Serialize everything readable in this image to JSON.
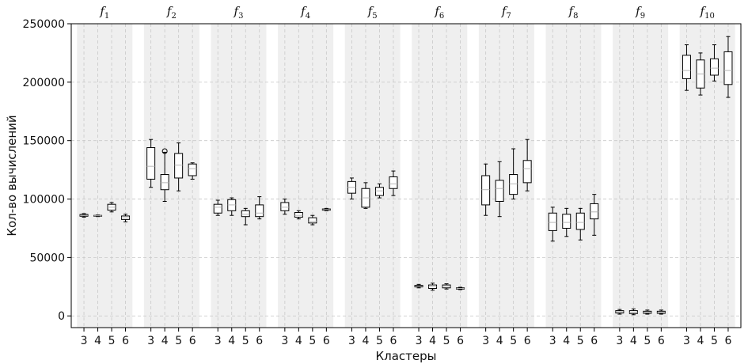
{
  "chart_data": {
    "type": "box",
    "ylabel": "Кол-во вычислений",
    "xlabel": "Кластеры",
    "ylim": [
      -10000,
      250000
    ],
    "yticks": [
      0,
      50000,
      100000,
      150000,
      200000,
      250000
    ],
    "grid": true,
    "cluster_labels": [
      "3",
      "4",
      "5",
      "6"
    ],
    "panels": [
      {
        "title": "f",
        "sub": "1",
        "boxes": [
          {
            "cluster": "3",
            "whislo": 84500,
            "q1": 85300,
            "med": 86000,
            "q3": 86800,
            "whishi": 87500
          },
          {
            "cluster": "4",
            "whislo": 85000,
            "q1": 85400,
            "med": 85700,
            "q3": 86000,
            "whishi": 86300
          },
          {
            "cluster": "5",
            "whislo": 89000,
            "q1": 90500,
            "med": 93000,
            "q3": 95500,
            "whishi": 97000
          },
          {
            "cluster": "6",
            "whislo": 80500,
            "q1": 82500,
            "med": 84000,
            "q3": 85500,
            "whishi": 87000
          }
        ]
      },
      {
        "title": "f",
        "sub": "2",
        "boxes": [
          {
            "cluster": "3",
            "whislo": 110000,
            "q1": 117000,
            "med": 128000,
            "q3": 144000,
            "whishi": 151000
          },
          {
            "cluster": "4",
            "whislo": 98000,
            "q1": 108000,
            "med": 114000,
            "q3": 121000,
            "whishi": 140000,
            "fliers": [
              141000
            ]
          },
          {
            "cluster": "5",
            "whislo": 107000,
            "q1": 118000,
            "med": 129000,
            "q3": 139000,
            "whishi": 148000
          },
          {
            "cluster": "6",
            "whislo": 117000,
            "q1": 120000,
            "med": 126000,
            "q3": 130000,
            "whishi": 131000
          }
        ]
      },
      {
        "title": "f",
        "sub": "3",
        "boxes": [
          {
            "cluster": "3",
            "whislo": 86000,
            "q1": 88000,
            "med": 93000,
            "q3": 95500,
            "whishi": 99000
          },
          {
            "cluster": "4",
            "whislo": 86000,
            "q1": 90000,
            "med": 95000,
            "q3": 99500,
            "whishi": 101000
          },
          {
            "cluster": "5",
            "whislo": 78000,
            "q1": 85000,
            "med": 87000,
            "q3": 90000,
            "whishi": 92000
          },
          {
            "cluster": "6",
            "whislo": 83000,
            "q1": 85000,
            "med": 88000,
            "q3": 95000,
            "whishi": 102000
          }
        ]
      },
      {
        "title": "f",
        "sub": "4",
        "boxes": [
          {
            "cluster": "3",
            "whislo": 87000,
            "q1": 90000,
            "med": 93000,
            "q3": 97000,
            "whishi": 100000
          },
          {
            "cluster": "4",
            "whislo": 83000,
            "q1": 84500,
            "med": 86000,
            "q3": 88500,
            "whishi": 90000
          },
          {
            "cluster": "5",
            "whislo": 78000,
            "q1": 79500,
            "med": 81000,
            "q3": 84000,
            "whishi": 86000
          },
          {
            "cluster": "6",
            "whislo": 90000,
            "q1": 90500,
            "med": 91000,
            "q3": 91500,
            "whishi": 92000
          }
        ]
      },
      {
        "title": "f",
        "sub": "5",
        "boxes": [
          {
            "cluster": "3",
            "whislo": 100000,
            "q1": 105000,
            "med": 110000,
            "q3": 115000,
            "whishi": 118000
          },
          {
            "cluster": "4",
            "whislo": 92000,
            "q1": 93000,
            "med": 101000,
            "q3": 109000,
            "whishi": 114000
          },
          {
            "cluster": "5",
            "whislo": 101000,
            "q1": 103000,
            "med": 107000,
            "q3": 110000,
            "whishi": 113000
          },
          {
            "cluster": "6",
            "whislo": 103000,
            "q1": 109000,
            "med": 113000,
            "q3": 119000,
            "whishi": 124000
          }
        ]
      },
      {
        "title": "f",
        "sub": "6",
        "boxes": [
          {
            "cluster": "3",
            "whislo": 24000,
            "q1": 24800,
            "med": 25500,
            "q3": 26200,
            "whishi": 27000
          },
          {
            "cluster": "4",
            "whislo": 22000,
            "q1": 23500,
            "med": 25000,
            "q3": 26500,
            "whishi": 28000
          },
          {
            "cluster": "5",
            "whislo": 23000,
            "q1": 24000,
            "med": 25300,
            "q3": 26500,
            "whishi": 27500
          },
          {
            "cluster": "6",
            "whislo": 22500,
            "q1": 23000,
            "med": 23500,
            "q3": 24000,
            "whishi": 24500
          }
        ]
      },
      {
        "title": "f",
        "sub": "7",
        "boxes": [
          {
            "cluster": "3",
            "whislo": 86000,
            "q1": 95000,
            "med": 108000,
            "q3": 120000,
            "whishi": 130000
          },
          {
            "cluster": "4",
            "whislo": 85000,
            "q1": 98000,
            "med": 109000,
            "q3": 116000,
            "whishi": 132000
          },
          {
            "cluster": "5",
            "whislo": 100000,
            "q1": 104000,
            "med": 113000,
            "q3": 121000,
            "whishi": 143000
          },
          {
            "cluster": "6",
            "whislo": 107000,
            "q1": 114000,
            "med": 126000,
            "q3": 133000,
            "whishi": 151000
          }
        ]
      },
      {
        "title": "f",
        "sub": "8",
        "boxes": [
          {
            "cluster": "3",
            "whislo": 64000,
            "q1": 73000,
            "med": 80000,
            "q3": 88000,
            "whishi": 93000
          },
          {
            "cluster": "4",
            "whislo": 68000,
            "q1": 75000,
            "med": 80000,
            "q3": 87000,
            "whishi": 92000
          },
          {
            "cluster": "5",
            "whislo": 65000,
            "q1": 74000,
            "med": 80000,
            "q3": 88000,
            "whishi": 92000
          },
          {
            "cluster": "6",
            "whislo": 69000,
            "q1": 83000,
            "med": 89000,
            "q3": 96000,
            "whishi": 104000
          }
        ]
      },
      {
        "title": "f",
        "sub": "9",
        "boxes": [
          {
            "cluster": "3",
            "whislo": 1500,
            "q1": 2500,
            "med": 3500,
            "q3": 4500,
            "whishi": 5500
          },
          {
            "cluster": "4",
            "whislo": 1000,
            "q1": 2000,
            "med": 3000,
            "q3": 4500,
            "whishi": 6000
          },
          {
            "cluster": "5",
            "whislo": 1500,
            "q1": 2200,
            "med": 3000,
            "q3": 4000,
            "whishi": 5000
          },
          {
            "cluster": "6",
            "whislo": 1500,
            "q1": 2200,
            "med": 3000,
            "q3": 4000,
            "whishi": 5000
          }
        ]
      },
      {
        "title": "f",
        "sub": "10",
        "boxes": [
          {
            "cluster": "3",
            "whislo": 193000,
            "q1": 203000,
            "med": 210000,
            "q3": 223000,
            "whishi": 232000
          },
          {
            "cluster": "4",
            "whislo": 189000,
            "q1": 195000,
            "med": 207000,
            "q3": 219000,
            "whishi": 225000
          },
          {
            "cluster": "5",
            "whislo": 201000,
            "q1": 206000,
            "med": 212000,
            "q3": 220000,
            "whishi": 232000
          },
          {
            "cluster": "6",
            "whislo": 187000,
            "q1": 198000,
            "med": 210000,
            "q3": 226000,
            "whishi": 239000
          }
        ]
      }
    ]
  }
}
